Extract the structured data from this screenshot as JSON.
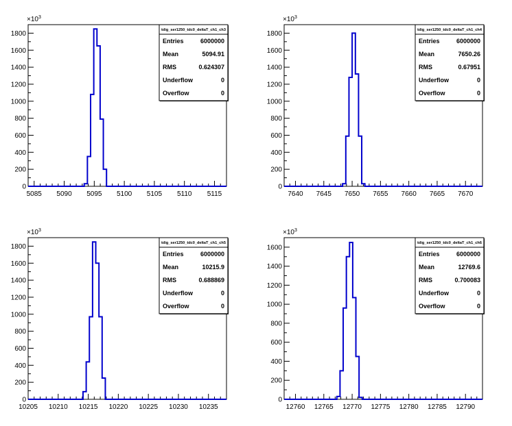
{
  "chart_data": [
    {
      "type": "histogram",
      "title": "tdig_ser1250_tdc0_deltaT_ch1_ch3",
      "xlim": [
        5084,
        5117
      ],
      "ylim": [
        0,
        1900
      ],
      "x_ticks": [
        "5085",
        "5090",
        "5095",
        "5100",
        "5105",
        "5110",
        "5115"
      ],
      "x_tick_values": [
        5085,
        5090,
        5095,
        5100,
        5105,
        5110,
        5115
      ],
      "y_ticks": [
        "0",
        "200",
        "400",
        "600",
        "800",
        "1000",
        "1200",
        "1400",
        "1600",
        "1800"
      ],
      "y_tick_values": [
        0,
        200,
        400,
        600,
        800,
        1000,
        1200,
        1400,
        1600,
        1800
      ],
      "y_multiplier": "×10³",
      "bin_edges": [
        5093.33,
        5093.86,
        5094.39,
        5094.92,
        5095.45,
        5095.98,
        5096.51,
        5097.04
      ],
      "values": [
        30,
        350,
        1080,
        1850,
        1650,
        790,
        200
      ],
      "stats": [
        {
          "label": "Entries",
          "value": "6000000"
        },
        {
          "label": "Mean",
          "value": "5094.91"
        },
        {
          "label": "RMS",
          "value": "0.624307"
        },
        {
          "label": "Underflow",
          "value": "0"
        },
        {
          "label": "Overflow",
          "value": "0"
        }
      ]
    },
    {
      "type": "histogram",
      "title": "tdig_ser1250_tdc0_deltaT_ch1_ch4",
      "xlim": [
        7638,
        7673
      ],
      "ylim": [
        0,
        1900
      ],
      "x_ticks": [
        "7640",
        "7645",
        "7650",
        "7655",
        "7660",
        "7665",
        "7670"
      ],
      "x_tick_values": [
        7640,
        7645,
        7650,
        7655,
        7660,
        7665,
        7670
      ],
      "y_ticks": [
        "0",
        "200",
        "400",
        "600",
        "800",
        "1000",
        "1200",
        "1400",
        "1600",
        "1800"
      ],
      "y_tick_values": [
        0,
        200,
        400,
        600,
        800,
        1000,
        1200,
        1400,
        1600,
        1800
      ],
      "y_multiplier": "×10³",
      "bin_edges": [
        7648.31,
        7648.88,
        7649.44,
        7650.0,
        7650.57,
        7651.13,
        7651.69,
        7652.25
      ],
      "values": [
        30,
        590,
        1280,
        1800,
        1320,
        590,
        30
      ],
      "stats": [
        {
          "label": "Entries",
          "value": "6000000"
        },
        {
          "label": "Mean",
          "value": "7650.26"
        },
        {
          "label": "RMS",
          "value": "0.67951"
        },
        {
          "label": "Underflow",
          "value": "0"
        },
        {
          "label": "Overflow",
          "value": "0"
        }
      ]
    },
    {
      "type": "histogram",
      "title": "tdig_ser1250_tdc0_deltaT_ch1_ch5",
      "xlim": [
        10205,
        10238
      ],
      "ylim": [
        0,
        1900
      ],
      "x_ticks": [
        "10205",
        "10210",
        "10215",
        "10220",
        "10225",
        "10230",
        "10235"
      ],
      "x_tick_values": [
        10205,
        10210,
        10215,
        10220,
        10225,
        10230,
        10235
      ],
      "y_ticks": [
        "0",
        "200",
        "400",
        "600",
        "800",
        "1000",
        "1200",
        "1400",
        "1600",
        "1800"
      ],
      "y_tick_values": [
        0,
        200,
        400,
        600,
        800,
        1000,
        1200,
        1400,
        1600,
        1800
      ],
      "y_multiplier": "×10³",
      "bin_edges": [
        10214.13,
        10214.66,
        10215.19,
        10215.72,
        10216.25,
        10216.78,
        10217.31,
        10217.84
      ],
      "values": [
        90,
        440,
        970,
        1850,
        1600,
        970,
        250
      ],
      "stats": [
        {
          "label": "Entries",
          "value": "6000000"
        },
        {
          "label": "Mean",
          "value": "10215.9"
        },
        {
          "label": "RMS",
          "value": "0.688869"
        },
        {
          "label": "Underflow",
          "value": "0"
        },
        {
          "label": "Overflow",
          "value": "0"
        }
      ]
    },
    {
      "type": "histogram",
      "title": "tdig_ser1250_tdc0_deltaT_ch1_ch6",
      "xlim": [
        12758,
        12793
      ],
      "ylim": [
        0,
        1700
      ],
      "x_ticks": [
        "12760",
        "12765",
        "12770",
        "12775",
        "12780",
        "12785",
        "12790"
      ],
      "x_tick_values": [
        12760,
        12765,
        12770,
        12775,
        12780,
        12785,
        12790
      ],
      "y_ticks": [
        "0",
        "200",
        "400",
        "600",
        "800",
        "1000",
        "1200",
        "1400",
        "1600"
      ],
      "y_tick_values": [
        0,
        200,
        400,
        600,
        800,
        1000,
        1200,
        1400,
        1600
      ],
      "y_multiplier": "×10³",
      "bin_edges": [
        12767.3,
        12767.86,
        12768.42,
        12768.98,
        12769.54,
        12770.1,
        12770.66,
        12771.22,
        12771.78
      ],
      "values": [
        30,
        300,
        960,
        1500,
        1650,
        1070,
        450,
        20
      ],
      "stats": [
        {
          "label": "Entries",
          "value": "6000000"
        },
        {
          "label": "Mean",
          "value": "12769.6"
        },
        {
          "label": "RMS",
          "value": "0.700083"
        },
        {
          "label": "Underflow",
          "value": "0"
        },
        {
          "label": "Overflow",
          "value": "0"
        }
      ]
    }
  ]
}
